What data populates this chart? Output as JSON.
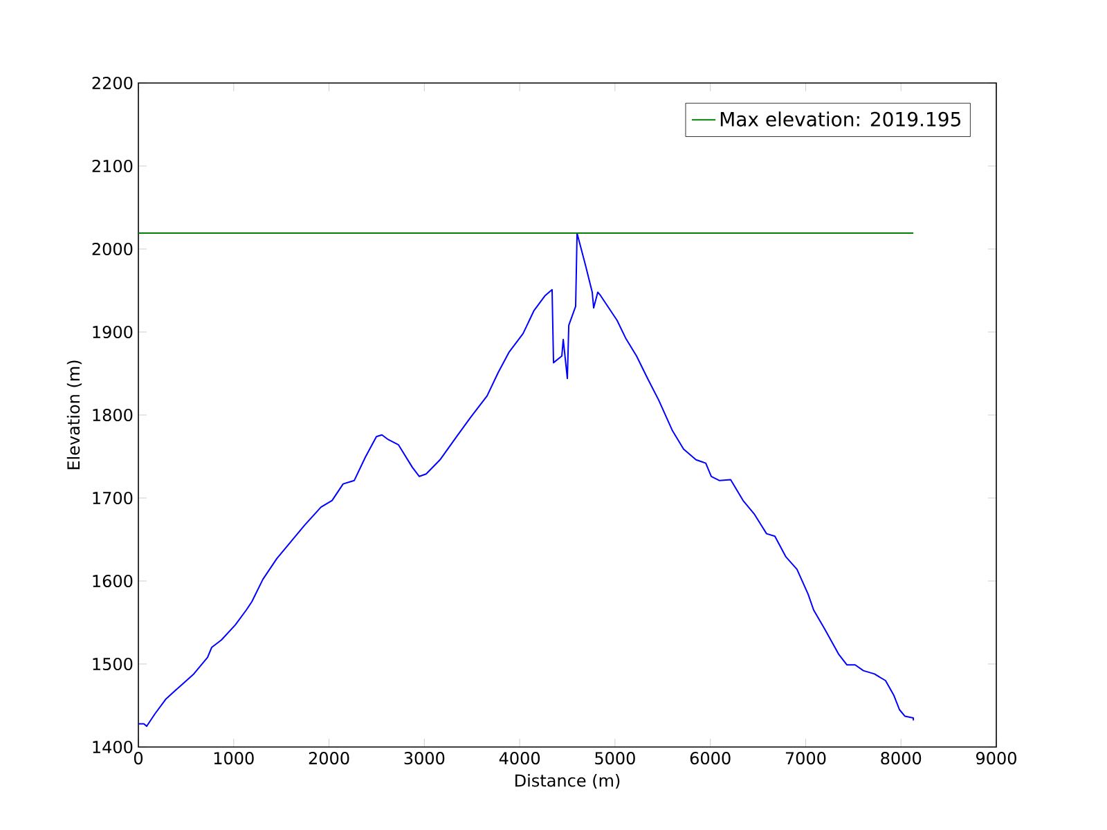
{
  "chart_data": {
    "type": "line",
    "xlabel": "Distance (m)",
    "ylabel": "Elevation (m)",
    "xlim": [
      0,
      9000
    ],
    "ylim": [
      1400,
      2200
    ],
    "xticks": [
      0,
      1000,
      2000,
      3000,
      4000,
      5000,
      6000,
      7000,
      8000,
      9000
    ],
    "yticks": [
      1400,
      1500,
      1600,
      1700,
      1800,
      1900,
      2000,
      2100,
      2200
    ],
    "grid": false,
    "legend": "top right",
    "marker": "none",
    "line_style": "solid",
    "x": [
      0,
      58,
      87,
      174,
      290,
      435,
      581,
      726,
      769,
      871,
      1016,
      1132,
      1190,
      1306,
      1452,
      1597,
      1742,
      1916,
      2032,
      2148,
      2264,
      2380,
      2497,
      2555,
      2613,
      2729,
      2874,
      2947,
      3019,
      3164,
      3339,
      3484,
      3658,
      3774,
      3890,
      4035,
      4151,
      4268,
      4340,
      4355,
      4442,
      4457,
      4500,
      4515,
      4587,
      4602,
      4689,
      4761,
      4776,
      4819,
      4848,
      4935,
      5022,
      5110,
      5226,
      5342,
      5458,
      5603,
      5719,
      5850,
      5952,
      6010,
      6097,
      6213,
      6343,
      6459,
      6590,
      6677,
      6793,
      6909,
      7026,
      7084,
      7200,
      7345,
      7432,
      7519,
      7606,
      7722,
      7838,
      7926,
      7984,
      8042,
      8129,
      8130
    ],
    "series": [
      {
        "color": "#0000ff",
        "values": [
          1428,
          1428,
          1425,
          1440,
          1458,
          1473,
          1488,
          1508,
          1520,
          1529,
          1547,
          1565,
          1575,
          1602,
          1627,
          1647,
          1667,
          1689,
          1697,
          1717,
          1721,
          1749,
          1774,
          1776,
          1771,
          1764,
          1737,
          1726,
          1729,
          1746,
          1774,
          1797,
          1823,
          1851,
          1876,
          1898,
          1926,
          1944,
          1951,
          1863,
          1871,
          1891,
          1844,
          1908,
          1931,
          2019,
          1981,
          1948,
          1929,
          1948,
          1944,
          1929,
          1914,
          1893,
          1871,
          1844,
          1818,
          1781,
          1759,
          1746,
          1742,
          1726,
          1721,
          1722,
          1697,
          1681,
          1657,
          1654,
          1629,
          1614,
          1584,
          1565,
          1542,
          1512,
          1499,
          1499,
          1492,
          1488,
          1480,
          1462,
          1445,
          1437,
          1435,
          1432
        ]
      }
    ],
    "ref_lines": [
      {
        "axis": "y",
        "value": 2019.195,
        "label": "Max elevation: 2019.195",
        "color": "#008000",
        "line_style": "solid"
      }
    ]
  }
}
